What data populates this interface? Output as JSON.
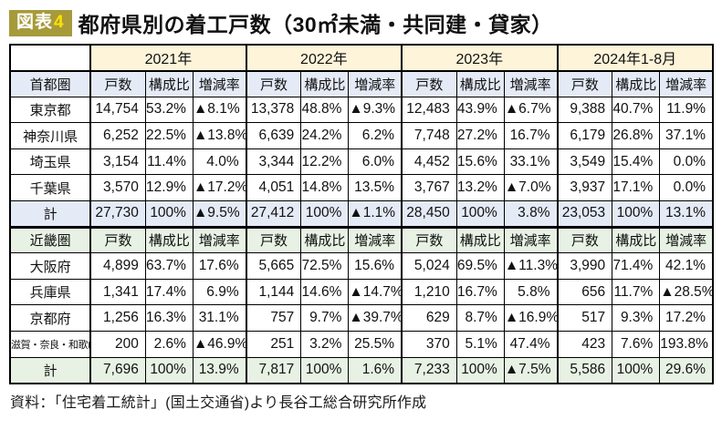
{
  "title": {
    "badge": "図表4",
    "badge_label": "図表",
    "badge_number": "4",
    "text": "都府県別の着工戸数（30㎡未満・共同建・貸家）"
  },
  "colors": {
    "badge_bg": "#a69a3b",
    "badge_number": "#ffe200",
    "year_header_bg": "#fdf4da",
    "capital_header_bg": "#e4eaf6",
    "kinki_header_bg": "#e7f2e4",
    "border": "#000000"
  },
  "table": {
    "year_headers": [
      "2021年",
      "2022年",
      "2023年",
      "2024年1-8月"
    ],
    "metric_headers": [
      "戸数",
      "構成比",
      "増減率"
    ],
    "sections": [
      {
        "name": "首都圏",
        "theme": "blue",
        "rows": [
          {
            "label": "東京都",
            "total": false,
            "small_label": false,
            "values": [
              "14,754",
              "53.2%",
              "▲8.1%",
              "13,378",
              "48.8%",
              "▲9.3%",
              "12,483",
              "43.9%",
              "▲6.7%",
              "9,388",
              "40.7%",
              "11.9%"
            ]
          },
          {
            "label": "神奈川県",
            "total": false,
            "small_label": false,
            "values": [
              "6,252",
              "22.5%",
              "▲13.8%",
              "6,639",
              "24.2%",
              "6.2%",
              "7,748",
              "27.2%",
              "16.7%",
              "6,179",
              "26.8%",
              "37.1%"
            ]
          },
          {
            "label": "埼玉県",
            "total": false,
            "small_label": false,
            "values": [
              "3,154",
              "11.4%",
              "4.0%",
              "3,344",
              "12.2%",
              "6.0%",
              "4,452",
              "15.6%",
              "33.1%",
              "3,549",
              "15.4%",
              "0.0%"
            ]
          },
          {
            "label": "千葉県",
            "total": false,
            "small_label": false,
            "values": [
              "3,570",
              "12.9%",
              "▲17.2%",
              "4,051",
              "14.8%",
              "13.5%",
              "3,767",
              "13.2%",
              "▲7.0%",
              "3,937",
              "17.1%",
              "0.0%"
            ]
          },
          {
            "label": "計",
            "total": true,
            "small_label": false,
            "values": [
              "27,730",
              "100%",
              "▲9.5%",
              "27,412",
              "100%",
              "▲1.1%",
              "28,450",
              "100%",
              "3.8%",
              "23,053",
              "100%",
              "13.1%"
            ]
          }
        ]
      },
      {
        "name": "近畿圏",
        "theme": "green",
        "rows": [
          {
            "label": "大阪府",
            "total": false,
            "small_label": false,
            "values": [
              "4,899",
              "63.7%",
              "17.6%",
              "5,665",
              "72.5%",
              "15.6%",
              "5,024",
              "69.5%",
              "▲11.3%",
              "3,990",
              "71.4%",
              "42.1%"
            ]
          },
          {
            "label": "兵庫県",
            "total": false,
            "small_label": false,
            "values": [
              "1,341",
              "17.4%",
              "6.9%",
              "1,144",
              "14.6%",
              "▲14.7%",
              "1,210",
              "16.7%",
              "5.8%",
              "656",
              "11.7%",
              "▲28.5%"
            ]
          },
          {
            "label": "京都府",
            "total": false,
            "small_label": false,
            "values": [
              "1,256",
              "16.3%",
              "31.1%",
              "757",
              "9.7%",
              "▲39.7%",
              "629",
              "8.7%",
              "▲16.9%",
              "517",
              "9.3%",
              "17.2%"
            ]
          },
          {
            "label": "滋賀・奈良・和歌山",
            "total": false,
            "small_label": true,
            "values": [
              "200",
              "2.6%",
              "▲46.9%",
              "251",
              "3.2%",
              "25.5%",
              "370",
              "5.1%",
              "47.4%",
              "423",
              "7.6%",
              "193.8%"
            ]
          },
          {
            "label": "計",
            "total": true,
            "small_label": false,
            "values": [
              "7,696",
              "100%",
              "13.9%",
              "7,817",
              "100%",
              "1.6%",
              "7,233",
              "100%",
              "▲7.5%",
              "5,586",
              "100%",
              "29.6%"
            ]
          }
        ]
      }
    ]
  },
  "footer": {
    "source": "資料：「住宅着工統計」(国土交通省)より長谷工総合研究所作成"
  }
}
